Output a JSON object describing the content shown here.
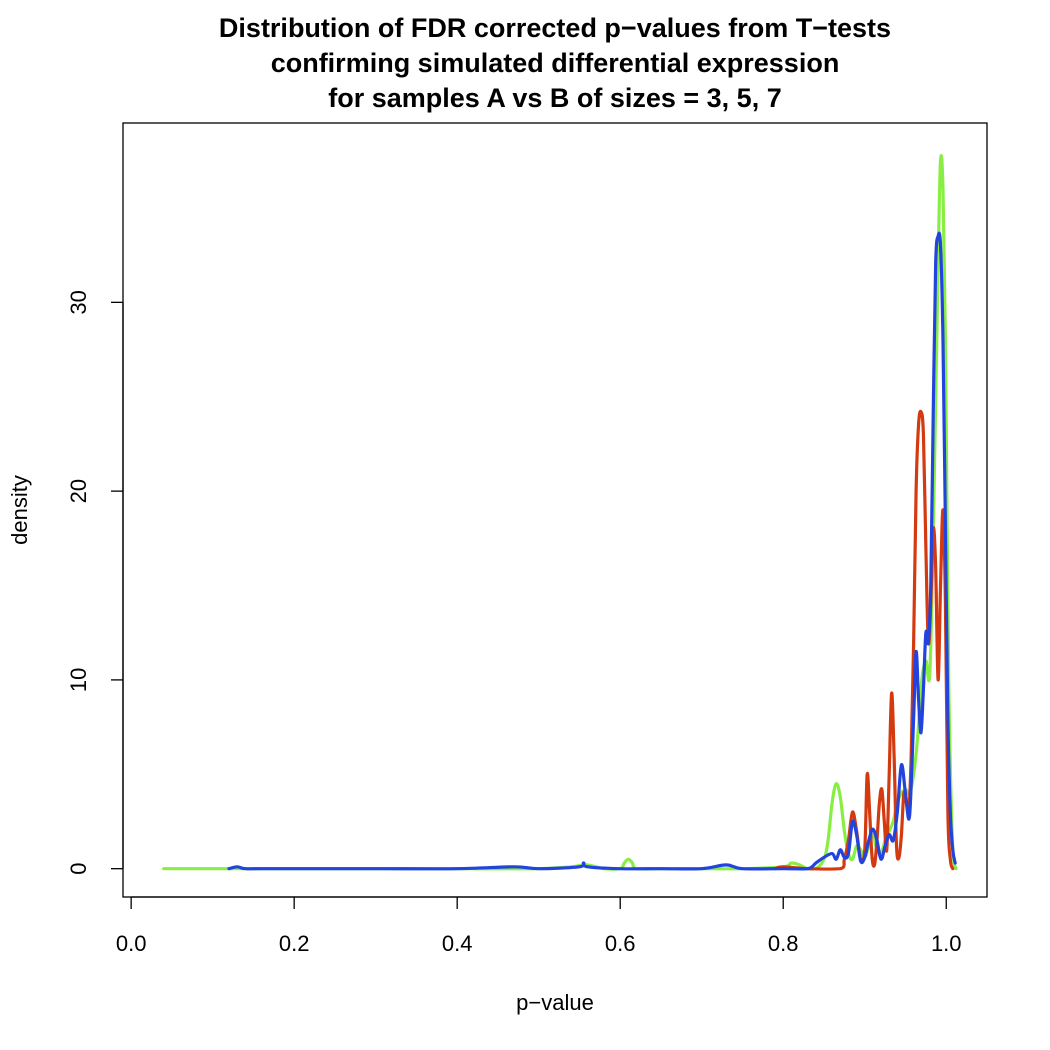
{
  "chart_data": {
    "type": "line",
    "title": [
      "Distribution of FDR corrected p−values from T−tests",
      "confirming simulated differential expression",
      "for samples A vs B of sizes =  3, 5, 7"
    ],
    "xlabel": "p−value",
    "ylabel": "density",
    "xlim": [
      -0.01,
      1.05
    ],
    "ylim": [
      -1.5,
      39.5
    ],
    "xticks": [
      0.0,
      0.2,
      0.4,
      0.6,
      0.8,
      1.0
    ],
    "xtick_labels": [
      "0.0",
      "0.2",
      "0.4",
      "0.6",
      "0.8",
      "1.0"
    ],
    "yticks": [
      0,
      10,
      20,
      30
    ],
    "ytick_labels": [
      "0",
      "10",
      "20",
      "30"
    ],
    "grid": false,
    "legend": "none",
    "series": [
      {
        "color": "#88ee44",
        "x": [
          0.04,
          0.1,
          0.2,
          0.3,
          0.4,
          0.5,
          0.54,
          0.56,
          0.58,
          0.6,
          0.605,
          0.61,
          0.615,
          0.62,
          0.65,
          0.7,
          0.75,
          0.8,
          0.81,
          0.82,
          0.83,
          0.84,
          0.85,
          0.855,
          0.86,
          0.865,
          0.87,
          0.875,
          0.88,
          0.885,
          0.89,
          0.895,
          0.9,
          0.905,
          0.91,
          0.915,
          0.92,
          0.925,
          0.93,
          0.935,
          0.94,
          0.945,
          0.95,
          0.955,
          0.96,
          0.965,
          0.97,
          0.975,
          0.98,
          0.985,
          0.99,
          0.993,
          0.996,
          0.999,
          1.003,
          1.008,
          1.012
        ],
        "y": [
          0.0,
          0.0,
          0.0,
          0.0,
          0.0,
          0.0,
          0.1,
          0.2,
          0.0,
          0.0,
          0.3,
          0.5,
          0.3,
          0.0,
          0.0,
          0.0,
          0.0,
          0.1,
          0.3,
          0.2,
          0.0,
          0.0,
          0.5,
          1.5,
          3.5,
          4.5,
          3.8,
          2.0,
          0.8,
          0.5,
          1.2,
          1.0,
          0.6,
          1.2,
          1.8,
          1.0,
          0.8,
          1.5,
          2.0,
          2.5,
          3.5,
          4.0,
          4.2,
          4.0,
          5.0,
          7.0,
          10.0,
          11.0,
          10.5,
          20.0,
          32.0,
          37.5,
          36.0,
          28.0,
          10.0,
          1.0,
          0.0
        ]
      },
      {
        "color": "#d43a10",
        "x": [
          0.79,
          0.8,
          0.83,
          0.87,
          0.875,
          0.88,
          0.885,
          0.89,
          0.895,
          0.9,
          0.903,
          0.906,
          0.909,
          0.912,
          0.915,
          0.918,
          0.921,
          0.924,
          0.927,
          0.93,
          0.933,
          0.936,
          0.939,
          0.942,
          0.945,
          0.948,
          0.951,
          0.954,
          0.957,
          0.96,
          0.963,
          0.966,
          0.969,
          0.972,
          0.975,
          0.978,
          0.981,
          0.984,
          0.987,
          0.99,
          0.993,
          0.996,
          0.999,
          1.002,
          1.005,
          1.008
        ],
        "y": [
          0.0,
          0.1,
          0.0,
          0.0,
          0.5,
          1.5,
          3.0,
          2.0,
          0.5,
          1.0,
          5.0,
          3.0,
          0.6,
          0.2,
          1.5,
          3.5,
          4.2,
          2.5,
          1.0,
          5.0,
          9.3,
          6.0,
          1.2,
          0.6,
          1.8,
          4.0,
          3.5,
          3.0,
          6.0,
          12.0,
          20.0,
          23.5,
          24.2,
          23.0,
          17.0,
          12.0,
          14.0,
          18.0,
          16.0,
          10.0,
          15.0,
          19.0,
          14.0,
          3.0,
          0.5,
          0.0
        ]
      },
      {
        "color": "#2244dd",
        "x": [
          0.12,
          0.13,
          0.14,
          0.16,
          0.2,
          0.3,
          0.4,
          0.47,
          0.5,
          0.55,
          0.555,
          0.56,
          0.6,
          0.65,
          0.7,
          0.73,
          0.75,
          0.8,
          0.83,
          0.84,
          0.85,
          0.86,
          0.865,
          0.87,
          0.875,
          0.88,
          0.885,
          0.89,
          0.895,
          0.9,
          0.905,
          0.91,
          0.915,
          0.92,
          0.925,
          0.93,
          0.935,
          0.94,
          0.945,
          0.95,
          0.955,
          0.96,
          0.963,
          0.966,
          0.969,
          0.972,
          0.975,
          0.978,
          0.981,
          0.984,
          0.987,
          0.99,
          0.993,
          0.996,
          0.999,
          1.002,
          1.005,
          1.008,
          1.011
        ],
        "y": [
          0.0,
          0.1,
          0.0,
          0.0,
          0.0,
          0.0,
          0.0,
          0.1,
          0.0,
          0.1,
          0.3,
          0.1,
          0.0,
          0.0,
          0.0,
          0.2,
          0.0,
          0.0,
          0.0,
          0.3,
          0.6,
          0.8,
          0.5,
          1.0,
          0.6,
          0.8,
          2.5,
          1.8,
          0.4,
          0.6,
          1.5,
          2.1,
          1.5,
          0.5,
          1.2,
          1.8,
          1.5,
          3.0,
          5.5,
          4.0,
          2.8,
          8.0,
          11.5,
          9.0,
          7.2,
          9.5,
          12.5,
          12.0,
          15.0,
          24.0,
          32.0,
          33.5,
          33.0,
          28.0,
          18.0,
          8.0,
          3.0,
          1.0,
          0.3
        ]
      }
    ]
  }
}
